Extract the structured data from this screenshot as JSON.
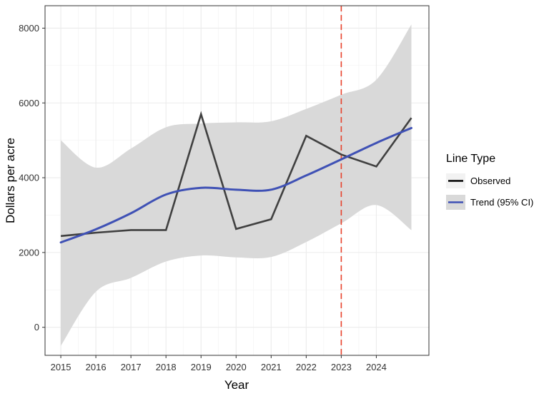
{
  "chart_data": {
    "type": "line",
    "title": "",
    "xlabel": "Year",
    "ylabel": "Dollars per acre",
    "xlim": [
      2014.55,
      2025.5
    ],
    "ylim": [
      -750,
      8600
    ],
    "x_ticks": [
      2015,
      2016,
      2017,
      2018,
      2019,
      2020,
      2021,
      2022,
      2023,
      2024
    ],
    "y_ticks": [
      0,
      2000,
      4000,
      6000,
      8000
    ],
    "grid": true,
    "legend": {
      "title": "Line Type",
      "position": "right",
      "entries": [
        {
          "label": "Observed",
          "color": "#000000"
        },
        {
          "label": "Trend (95% CI)",
          "color": "#3f51b5"
        }
      ]
    },
    "series": [
      {
        "name": "Observed",
        "color": "#404040",
        "x": [
          2015,
          2016,
          2017,
          2018,
          2019,
          2020,
          2021,
          2022,
          2023,
          2024,
          2025
        ],
        "values": [
          2440,
          2530,
          2600,
          2600,
          5700,
          2630,
          2890,
          5120,
          4620,
          4300,
          5600
        ]
      },
      {
        "name": "Trend (95% CI)",
        "color": "#3f51b5",
        "x": [
          2015,
          2016,
          2017,
          2018,
          2019,
          2020,
          2021,
          2022,
          2023,
          2024,
          2025
        ],
        "values": [
          2270,
          2620,
          3050,
          3550,
          3730,
          3680,
          3680,
          4060,
          4490,
          4930,
          5330
        ],
        "ci_lower": [
          -500,
          950,
          1320,
          1760,
          1920,
          1870,
          1880,
          2280,
          2780,
          3270,
          2600
        ],
        "ci_upper": [
          5000,
          4270,
          4780,
          5350,
          5450,
          5480,
          5510,
          5840,
          6220,
          6620,
          8100
        ]
      }
    ],
    "reference_line": {
      "x": 2023,
      "color": "#e8412b",
      "style": "dashed"
    }
  }
}
